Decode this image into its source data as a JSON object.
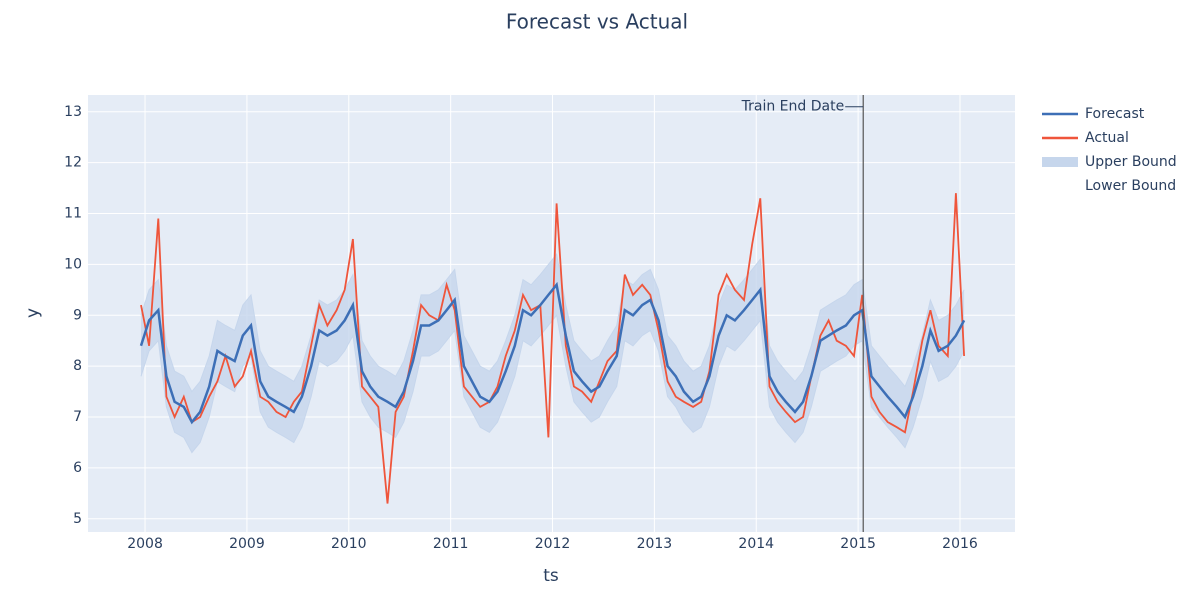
{
  "chart_data": {
    "type": "line",
    "title": "Forecast vs Actual",
    "x_label": "ts",
    "y_label": "y",
    "x": [
      2007.96,
      2008.04,
      2008.13,
      2008.21,
      2008.29,
      2008.38,
      2008.46,
      2008.54,
      2008.63,
      2008.71,
      2008.79,
      2008.88,
      2008.96,
      2009.04,
      2009.13,
      2009.21,
      2009.29,
      2009.38,
      2009.46,
      2009.54,
      2009.63,
      2009.71,
      2009.79,
      2009.88,
      2009.96,
      2010.04,
      2010.13,
      2010.21,
      2010.29,
      2010.38,
      2010.46,
      2010.54,
      2010.63,
      2010.71,
      2010.79,
      2010.88,
      2010.96,
      2011.04,
      2011.13,
      2011.21,
      2011.29,
      2011.38,
      2011.46,
      2011.54,
      2011.63,
      2011.71,
      2011.79,
      2011.88,
      2011.96,
      2012.04,
      2012.13,
      2012.21,
      2012.29,
      2012.38,
      2012.46,
      2012.54,
      2012.63,
      2012.71,
      2012.79,
      2012.88,
      2012.96,
      2013.04,
      2013.13,
      2013.21,
      2013.29,
      2013.38,
      2013.46,
      2013.54,
      2013.63,
      2013.71,
      2013.79,
      2013.88,
      2013.96,
      2014.04,
      2014.13,
      2014.21,
      2014.29,
      2014.38,
      2014.46,
      2014.54,
      2014.63,
      2014.71,
      2014.79,
      2014.88,
      2014.96,
      2015.04,
      2015.13,
      2015.21,
      2015.29,
      2015.38,
      2015.46,
      2015.54,
      2015.63,
      2015.71,
      2015.79,
      2015.88,
      2015.96,
      2016.04
    ],
    "series": [
      {
        "name": "Forecast",
        "color": "#3d6fb6",
        "values": [
          8.4,
          8.9,
          9.1,
          7.8,
          7.3,
          7.2,
          6.9,
          7.1,
          7.6,
          8.3,
          8.2,
          8.1,
          8.6,
          8.8,
          7.7,
          7.4,
          7.3,
          7.2,
          7.1,
          7.4,
          8.0,
          8.7,
          8.6,
          8.7,
          8.9,
          9.2,
          7.9,
          7.6,
          7.4,
          7.3,
          7.2,
          7.5,
          8.1,
          8.8,
          8.8,
          8.9,
          9.1,
          9.3,
          8.0,
          7.7,
          7.4,
          7.3,
          7.5,
          7.9,
          8.4,
          9.1,
          9.0,
          9.2,
          9.4,
          9.6,
          8.6,
          7.9,
          7.7,
          7.5,
          7.6,
          7.9,
          8.2,
          9.1,
          9.0,
          9.2,
          9.3,
          8.9,
          8.0,
          7.8,
          7.5,
          7.3,
          7.4,
          7.8,
          8.6,
          9.0,
          8.9,
          9.1,
          9.3,
          9.5,
          7.8,
          7.5,
          7.3,
          7.1,
          7.3,
          7.8,
          8.5,
          8.6,
          8.7,
          8.8,
          9.0,
          9.1,
          7.8,
          7.6,
          7.4,
          7.2,
          7.0,
          7.4,
          8.0,
          8.7,
          8.3,
          8.4,
          8.6,
          8.9
        ]
      },
      {
        "name": "Actual",
        "color": "#ef553b",
        "values": [
          9.2,
          8.4,
          10.9,
          7.4,
          7.0,
          7.4,
          6.9,
          7.0,
          7.4,
          7.7,
          8.2,
          7.6,
          7.8,
          8.3,
          7.4,
          7.3,
          7.1,
          7.0,
          7.3,
          7.5,
          8.4,
          9.2,
          8.8,
          9.1,
          9.5,
          10.5,
          7.6,
          7.4,
          7.2,
          5.3,
          7.1,
          7.4,
          8.3,
          9.2,
          9.0,
          8.9,
          9.6,
          9.1,
          7.6,
          7.4,
          7.2,
          7.3,
          7.6,
          8.2,
          8.7,
          9.4,
          9.1,
          9.2,
          6.6,
          11.2,
          8.4,
          7.6,
          7.5,
          7.3,
          7.7,
          8.1,
          8.3,
          9.8,
          9.4,
          9.6,
          9.4,
          8.7,
          7.7,
          7.4,
          7.3,
          7.2,
          7.3,
          7.9,
          9.4,
          9.8,
          9.5,
          9.3,
          10.4,
          11.3,
          7.6,
          7.3,
          7.1,
          6.9,
          7.0,
          7.8,
          8.6,
          8.9,
          8.5,
          8.4,
          8.2,
          9.4,
          7.4,
          7.1,
          6.9,
          6.8,
          6.7,
          7.5,
          8.5,
          9.1,
          8.4,
          8.2,
          11.4,
          8.2
        ]
      },
      {
        "name": "Upper Bound",
        "color": "#c6d6ec",
        "values": [
          9.0,
          9.5,
          9.7,
          8.4,
          7.9,
          7.8,
          7.5,
          7.7,
          8.2,
          8.9,
          8.8,
          8.7,
          9.2,
          9.4,
          8.3,
          8.0,
          7.9,
          7.8,
          7.7,
          8.0,
          8.6,
          9.3,
          9.2,
          9.3,
          9.5,
          9.8,
          8.5,
          8.2,
          8.0,
          7.9,
          7.8,
          8.1,
          8.7,
          9.4,
          9.4,
          9.5,
          9.7,
          9.9,
          8.6,
          8.3,
          8.0,
          7.9,
          8.1,
          8.5,
          9.0,
          9.7,
          9.6,
          9.8,
          10.0,
          10.2,
          9.2,
          8.5,
          8.3,
          8.1,
          8.2,
          8.5,
          8.8,
          9.7,
          9.6,
          9.8,
          9.9,
          9.5,
          8.6,
          8.4,
          8.1,
          7.9,
          8.0,
          8.4,
          9.2,
          9.6,
          9.5,
          9.7,
          9.9,
          10.1,
          8.4,
          8.1,
          7.9,
          7.7,
          7.9,
          8.4,
          9.1,
          9.2,
          9.3,
          9.4,
          9.6,
          9.7,
          8.4,
          8.2,
          8.0,
          7.8,
          7.6,
          8.0,
          8.6,
          9.3,
          8.9,
          9.0,
          9.2,
          9.5
        ]
      },
      {
        "name": "Lower Bound",
        "values": [
          7.8,
          8.3,
          8.5,
          7.2,
          6.7,
          6.6,
          6.3,
          6.5,
          7.0,
          7.7,
          7.6,
          7.5,
          8.0,
          8.2,
          7.1,
          6.8,
          6.7,
          6.6,
          6.5,
          6.8,
          7.4,
          8.1,
          8.0,
          8.1,
          8.3,
          8.6,
          7.3,
          7.0,
          6.8,
          6.7,
          6.6,
          6.9,
          7.5,
          8.2,
          8.2,
          8.3,
          8.5,
          8.7,
          7.4,
          7.1,
          6.8,
          6.7,
          6.9,
          7.3,
          7.8,
          8.5,
          8.4,
          8.6,
          8.8,
          9.0,
          8.0,
          7.3,
          7.1,
          6.9,
          7.0,
          7.3,
          7.6,
          8.5,
          8.4,
          8.6,
          8.7,
          8.3,
          7.4,
          7.2,
          6.9,
          6.7,
          6.8,
          7.2,
          8.0,
          8.4,
          8.3,
          8.5,
          8.7,
          8.9,
          7.2,
          6.9,
          6.7,
          6.5,
          6.7,
          7.2,
          7.9,
          8.0,
          8.1,
          8.2,
          8.4,
          8.5,
          7.2,
          7.0,
          6.8,
          6.6,
          6.4,
          6.8,
          7.4,
          8.1,
          7.7,
          7.8,
          8.0,
          8.3
        ]
      }
    ],
    "xlim": [
      2007.44,
      2016.54
    ],
    "xticks": [
      2008,
      2009,
      2010,
      2011,
      2012,
      2013,
      2014,
      2015,
      2016
    ],
    "ylim": [
      4.74,
      13.33
    ],
    "yticks": [
      5,
      6,
      7,
      8,
      9,
      10,
      11,
      12,
      13
    ],
    "grid": true,
    "annotation": {
      "text": "Train End Date",
      "x": 2015.05,
      "y": 13.1
    }
  }
}
